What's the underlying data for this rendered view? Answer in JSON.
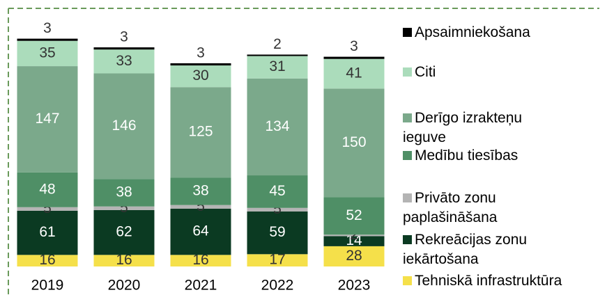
{
  "chart_data": {
    "type": "stacked_bar",
    "categories": [
      "2019",
      "2020",
      "2021",
      "2022",
      "2023"
    ],
    "series": [
      {
        "name": "Tehniskā infrastruktūra",
        "color": "#f5e04a",
        "values": [
          16,
          16,
          16,
          17,
          28
        ]
      },
      {
        "name": "Rekreācijas zonu iekārtošana",
        "color": "#0b3a22",
        "values": [
          61,
          62,
          64,
          59,
          14
        ]
      },
      {
        "name": "Privāto zonu paplašināšana",
        "color": "#b4b4b4",
        "values": [
          5,
          5,
          5,
          5,
          2
        ]
      },
      {
        "name": "Medību tiesības",
        "color": "#4f8f66",
        "values": [
          48,
          38,
          38,
          45,
          52
        ]
      },
      {
        "name": "Derīgo izrakteņu ieguve",
        "color": "#7ba98b",
        "values": [
          147,
          146,
          125,
          134,
          150
        ]
      },
      {
        "name": "Citi",
        "color": "#abdcbb",
        "values": [
          35,
          33,
          30,
          31,
          41
        ]
      },
      {
        "name": "Apsaimniekošana",
        "color": "#000000",
        "values": [
          3,
          3,
          3,
          2,
          3
        ]
      }
    ],
    "ylim": [
      0,
      330
    ]
  }
}
